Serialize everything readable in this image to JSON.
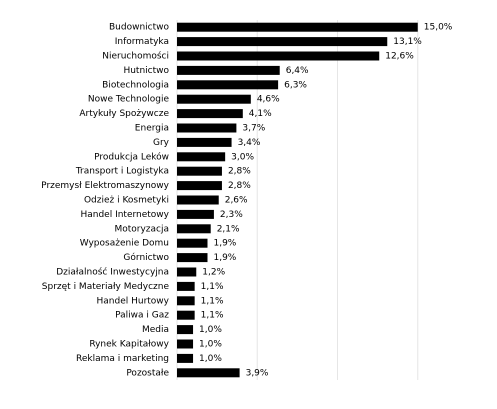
{
  "chart_data": {
    "type": "barh",
    "categories": [
      "Budownictwo",
      "Informatyka",
      "Nieruchomości",
      "Hutnictwo",
      "Biotechnologia",
      "Nowe Technologie",
      "Artykuły Spożywcze",
      "Energia",
      "Gry",
      "Produkcja Leków",
      "Transport i Logistyka",
      "Przemysł Elektromaszynowy",
      "Odzież i Kosmetyki",
      "Handel Internetowy",
      "Motoryzacja",
      "Wyposażenie Domu",
      "Górnictwo",
      "Działalność Inwestycyjna",
      "Sprzęt i Materiały Medyczne",
      "Handel Hurtowy",
      "Paliwa i Gaz",
      "Media",
      "Rynek Kapitałowy",
      "Reklama i marketing",
      "Pozostałe"
    ],
    "values": [
      15.0,
      13.1,
      12.6,
      6.4,
      6.3,
      4.6,
      4.1,
      3.7,
      3.4,
      3.0,
      2.8,
      2.8,
      2.6,
      2.3,
      2.1,
      1.9,
      1.9,
      1.2,
      1.1,
      1.1,
      1.1,
      1.0,
      1.0,
      1.0,
      3.9
    ],
    "value_labels": [
      "15,0%",
      "13,1%",
      "12,6%",
      "6,4%",
      "6,3%",
      "4,6%",
      "4,1%",
      "3,7%",
      "3,4%",
      "3,0%",
      "2,8%",
      "2,8%",
      "2,6%",
      "2,3%",
      "2,1%",
      "1,9%",
      "1,9%",
      "1,2%",
      "1,1%",
      "1,1%",
      "1,1%",
      "1,0%",
      "1,0%",
      "1,0%",
      "3,9%"
    ],
    "color": "#000000",
    "xlim": [
      0,
      20
    ],
    "xticks": [
      0,
      5,
      10,
      15
    ],
    "grid": true
  }
}
